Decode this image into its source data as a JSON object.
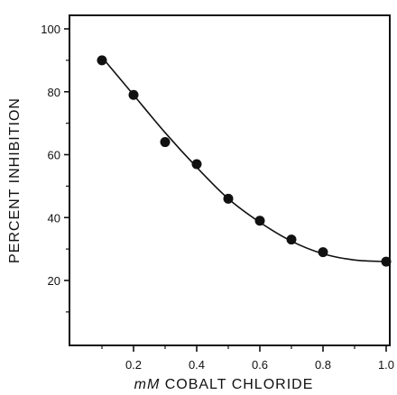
{
  "chart_data": {
    "type": "scatter",
    "title": "",
    "xlabel": "mM COBALT CHLORIDE",
    "xlabel_prefix": "mM",
    "xlabel_rest": " COBALT CHLORIDE",
    "ylabel": "PERCENT INHIBITION",
    "xlim": [
      0,
      1.0
    ],
    "ylim": [
      0,
      100
    ],
    "x_tick_labels": [
      "0.2",
      "0.4",
      "0.6",
      "0.8",
      "1.0"
    ],
    "x_tick_values": [
      0.2,
      0.4,
      0.6,
      0.8,
      1.0
    ],
    "x_minor_ticks": [
      0.1,
      0.3,
      0.5,
      0.7,
      0.9
    ],
    "y_tick_labels": [
      "20",
      "40",
      "60",
      "80",
      "100"
    ],
    "y_tick_values": [
      20,
      40,
      60,
      80,
      100
    ],
    "y_minor_ticks": [
      10,
      30,
      50,
      70,
      90
    ],
    "grid": false,
    "series": [
      {
        "points": [
          {
            "x": 0.1,
            "y": 90
          },
          {
            "x": 0.2,
            "y": 79
          },
          {
            "x": 0.3,
            "y": 64
          },
          {
            "x": 0.4,
            "y": 57
          },
          {
            "x": 0.5,
            "y": 46
          },
          {
            "x": 0.6,
            "y": 39
          },
          {
            "x": 0.7,
            "y": 33
          },
          {
            "x": 0.8,
            "y": 29
          },
          {
            "x": 1.0,
            "y": 26
          }
        ],
        "fit_curve": [
          {
            "x": 0.1,
            "y": 91
          },
          {
            "x": 0.2,
            "y": 79
          },
          {
            "x": 0.3,
            "y": 67
          },
          {
            "x": 0.4,
            "y": 56
          },
          {
            "x": 0.5,
            "y": 46
          },
          {
            "x": 0.6,
            "y": 38.5
          },
          {
            "x": 0.7,
            "y": 32.5
          },
          {
            "x": 0.8,
            "y": 28.5
          },
          {
            "x": 0.9,
            "y": 26.5
          },
          {
            "x": 1.0,
            "y": 26
          }
        ]
      }
    ]
  }
}
